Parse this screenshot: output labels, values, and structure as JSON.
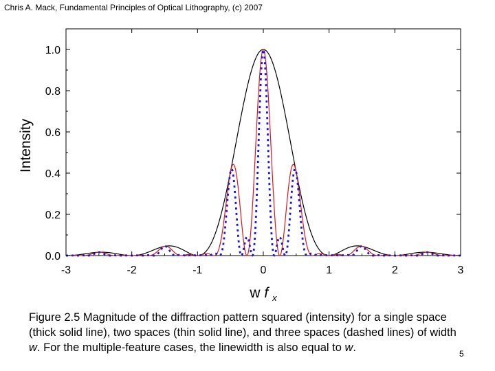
{
  "header": {
    "text": "Chris A. Mack, Fundamental Principles of Optical Lithography, (c) 2007"
  },
  "chart_data": {
    "type": "line",
    "title": "",
    "ylabel": "Intensity",
    "xlabel_main": "w",
    "xlabel_var": "f",
    "xlabel_sub": "x",
    "xlim": [
      -3,
      3
    ],
    "ylim": [
      0,
      1.1
    ],
    "x_ticks": [
      -3,
      -2,
      -1,
      0,
      1,
      2,
      3
    ],
    "x_tick_labels": [
      "-3",
      "-2",
      "-1",
      "0",
      "1",
      "2",
      "3"
    ],
    "y_ticks": [
      0,
      0.2,
      0.4,
      0.6,
      0.8,
      1.0
    ],
    "y_tick_labels": [
      "0.0",
      "0.2",
      "0.4",
      "0.6",
      "0.8",
      "1.0"
    ],
    "grid": false,
    "series": [
      {
        "name": "single space (thick solid line)",
        "n": 1,
        "color": "#000000",
        "style": "solid"
      },
      {
        "name": "two spaces (thin solid line)",
        "n": 2,
        "color": "#e0141c",
        "style": "solid"
      },
      {
        "name": "three spaces (dashed lines)",
        "n": 3,
        "color": "#1a1ac8",
        "style": "dotted"
      }
    ]
  },
  "caption": {
    "text_before_w": "Figure 2.5  Magnitude of the diffraction pattern squared (intensity) for a single space (thick solid line), two spaces (thin solid line), and three spaces (dashed lines) of width ",
    "w1": "w",
    "text_middle": ".  For the multiple-feature cases, the linewidth is also equal to ",
    "w2": "w",
    "text_end": "."
  },
  "page_number": "5"
}
